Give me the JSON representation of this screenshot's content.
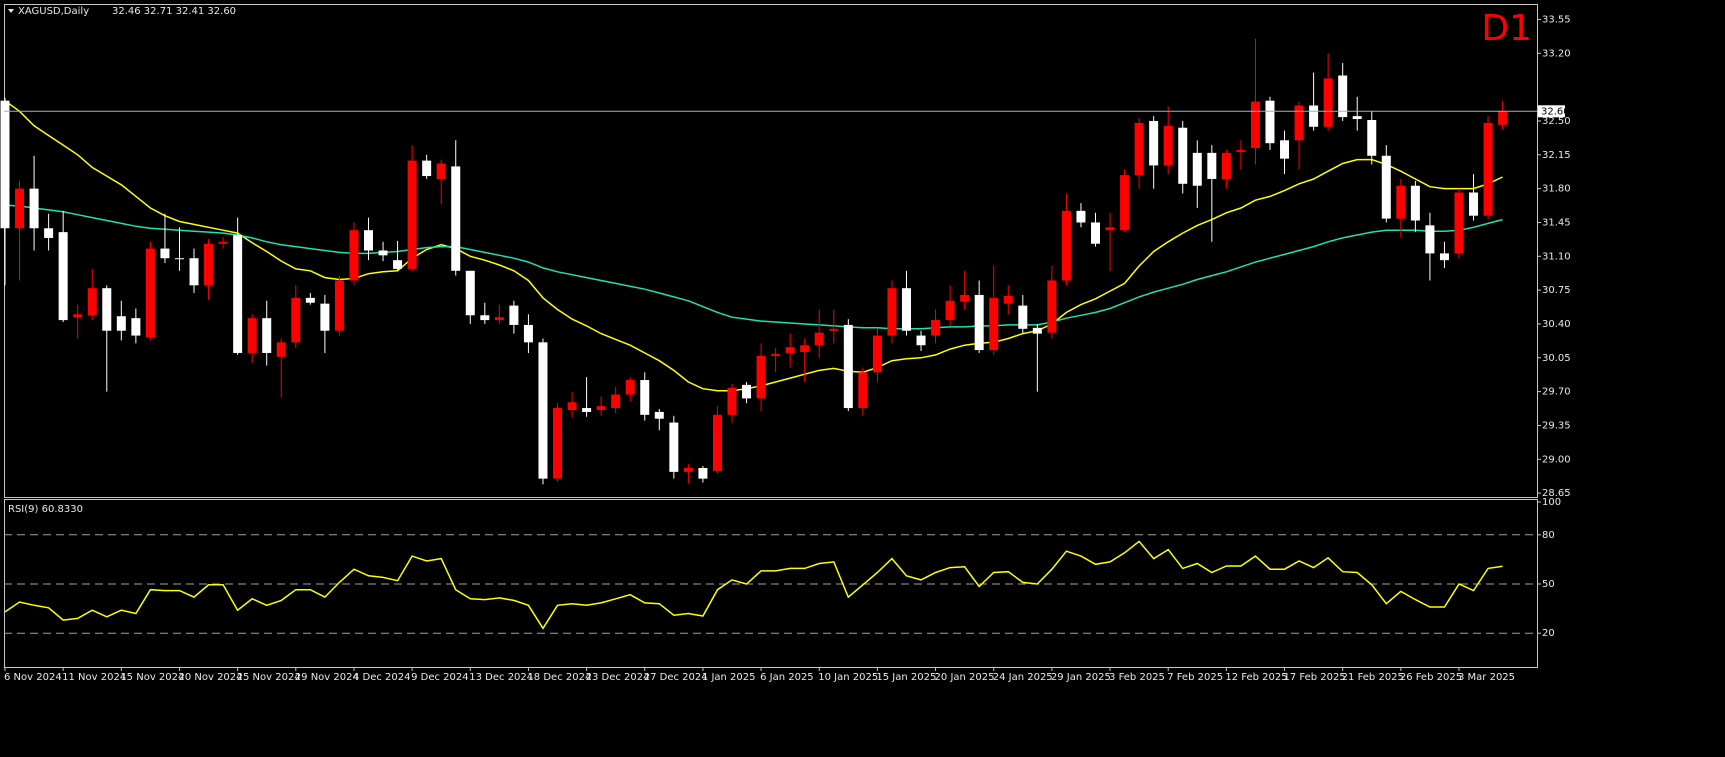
{
  "chart_data": [
    {
      "type": "candlestick",
      "title": "XAGUSD,Daily",
      "header": "32.46 32.71 32.41 32.60",
      "timeframe": "D1",
      "categories": [
        "6 Nov 2024",
        null,
        null,
        null,
        "11 Nov 2024",
        null,
        null,
        null,
        "15 Nov 2024",
        null,
        null,
        null,
        "20 Nov 2024",
        null,
        null,
        null,
        "25 Nov 2024",
        null,
        null,
        null,
        "29 Nov 2024",
        null,
        null,
        null,
        "4 Dec 2024",
        null,
        null,
        null,
        "9 Dec 2024",
        null,
        null,
        null,
        "13 Dec 2024",
        null,
        null,
        null,
        "18 Dec 2024",
        null,
        null,
        null,
        "23 Dec 2024",
        null,
        null,
        null,
        "27 Dec 2024",
        null,
        null,
        null,
        "1 Jan 2025",
        null,
        null,
        null,
        "6 Jan 2025",
        null,
        null,
        null,
        "10 Jan 2025",
        null,
        null,
        null,
        "15 Jan 2025",
        null,
        null,
        null,
        "20 Jan 2025",
        null,
        null,
        null,
        "24 Jan 2025",
        null,
        null,
        null,
        "29 Jan 2025",
        null,
        null,
        null,
        "3 Feb 2025",
        null,
        null,
        null,
        "7 Feb 2025",
        null,
        null,
        null,
        "12 Feb 2025",
        null,
        null,
        null,
        "17 Feb 2025",
        null,
        null,
        null,
        "21 Feb 2025",
        null,
        null,
        null,
        "26 Feb 2025",
        null,
        null,
        null,
        "3 Mar 2025",
        null,
        null,
        null
      ],
      "open": [
        32.71,
        31.39,
        31.8,
        31.39,
        31.35,
        30.47,
        30.49,
        30.77,
        30.48,
        30.46,
        30.26,
        31.18,
        31.08,
        31.08,
        30.8,
        31.23,
        31.32,
        30.1,
        30.46,
        30.06,
        30.21,
        30.67,
        30.61,
        30.33,
        30.85,
        31.37,
        31.16,
        31.06,
        30.97,
        32.09,
        31.9,
        32.03,
        30.95,
        30.49,
        30.44,
        30.59,
        30.39,
        30.21,
        28.8,
        29.51,
        29.53,
        29.51,
        29.53,
        29.67,
        29.82,
        29.49,
        29.38,
        28.87,
        28.91,
        28.88,
        29.46,
        29.77,
        29.63,
        30.07,
        30.1,
        30.11,
        30.18,
        30.33,
        30.39,
        29.53,
        29.9,
        30.28,
        30.77,
        30.28,
        30.28,
        30.44,
        30.63,
        30.7,
        30.13,
        30.61,
        30.59,
        30.36,
        30.31,
        30.85,
        31.57,
        31.45,
        31.37,
        31.37,
        31.94,
        32.5,
        32.04,
        32.43,
        32.17,
        32.17,
        31.9,
        32.18,
        32.22,
        32.71,
        32.3,
        32.3,
        32.66,
        32.44,
        32.97,
        32.55,
        32.51,
        32.14,
        31.49,
        31.83,
        31.42,
        31.13,
        31.13,
        31.76,
        31.52,
        32.46
      ],
      "high": [
        32.74,
        31.88,
        32.14,
        31.54,
        31.57,
        30.6,
        30.97,
        30.8,
        30.64,
        30.56,
        31.25,
        31.54,
        31.4,
        31.18,
        31.28,
        31.3,
        31.5,
        30.5,
        30.64,
        30.25,
        30.8,
        30.72,
        30.7,
        30.9,
        31.45,
        31.5,
        31.25,
        31.26,
        32.25,
        32.15,
        32.1,
        32.3,
        30.95,
        30.62,
        30.6,
        30.64,
        30.5,
        30.25,
        29.58,
        29.7,
        29.85,
        29.65,
        29.75,
        29.85,
        29.9,
        29.52,
        29.45,
        28.95,
        28.93,
        29.55,
        29.78,
        29.8,
        30.2,
        30.15,
        30.3,
        30.25,
        30.55,
        30.55,
        30.45,
        29.95,
        30.35,
        30.85,
        30.95,
        30.33,
        30.55,
        30.8,
        30.95,
        30.85,
        31.0,
        30.8,
        30.7,
        30.4,
        31.0,
        31.75,
        31.65,
        31.55,
        31.55,
        32.0,
        32.53,
        32.55,
        32.65,
        32.5,
        32.3,
        32.25,
        32.2,
        32.3,
        33.35,
        32.75,
        32.4,
        32.7,
        33.0,
        33.2,
        33.1,
        32.75,
        32.6,
        32.25,
        31.9,
        31.88,
        31.55,
        31.25,
        31.8,
        31.95,
        32.55,
        32.71
      ],
      "low": [
        30.8,
        30.85,
        31.16,
        31.16,
        30.42,
        30.25,
        30.44,
        29.7,
        30.23,
        30.2,
        30.23,
        31.03,
        30.95,
        30.72,
        30.65,
        31.18,
        30.08,
        30.0,
        29.97,
        29.64,
        30.15,
        30.6,
        30.1,
        30.28,
        30.8,
        31.06,
        31.05,
        30.95,
        30.95,
        31.9,
        31.64,
        30.9,
        30.4,
        30.4,
        30.4,
        30.3,
        30.1,
        28.74,
        28.77,
        29.43,
        29.44,
        29.45,
        29.48,
        29.6,
        29.4,
        29.3,
        28.8,
        28.75,
        28.76,
        28.85,
        29.38,
        29.58,
        29.5,
        29.9,
        29.95,
        29.8,
        30.05,
        30.2,
        29.5,
        29.45,
        29.8,
        30.2,
        30.28,
        30.12,
        30.2,
        30.38,
        30.55,
        30.1,
        30.08,
        30.5,
        30.3,
        29.7,
        30.25,
        30.8,
        31.4,
        31.2,
        30.95,
        31.35,
        31.8,
        31.8,
        31.95,
        31.75,
        31.6,
        31.25,
        31.8,
        32.0,
        32.05,
        32.2,
        31.95,
        32.0,
        32.4,
        32.4,
        32.5,
        32.4,
        32.05,
        31.45,
        31.3,
        31.35,
        30.85,
        30.98,
        31.08,
        31.47,
        31.48,
        32.41
      ],
      "close": [
        31.39,
        31.8,
        31.39,
        31.29,
        30.44,
        30.5,
        30.77,
        30.33,
        30.33,
        30.28,
        31.18,
        31.08,
        31.07,
        30.8,
        31.23,
        31.25,
        30.1,
        30.46,
        30.1,
        30.21,
        30.67,
        30.62,
        30.33,
        30.85,
        31.37,
        31.16,
        31.11,
        30.97,
        32.09,
        31.93,
        32.06,
        30.95,
        30.49,
        30.44,
        30.47,
        30.39,
        30.21,
        28.8,
        29.53,
        29.59,
        29.49,
        29.55,
        29.67,
        29.82,
        29.46,
        29.42,
        28.87,
        28.91,
        28.8,
        29.46,
        29.74,
        29.63,
        30.07,
        30.09,
        30.16,
        30.18,
        30.31,
        30.35,
        29.53,
        29.9,
        30.28,
        30.77,
        30.33,
        30.18,
        30.44,
        30.64,
        30.7,
        30.13,
        30.67,
        30.69,
        30.35,
        30.3,
        30.85,
        31.57,
        31.45,
        31.23,
        31.4,
        31.94,
        32.48,
        32.04,
        32.45,
        31.85,
        31.83,
        31.9,
        32.17,
        32.2,
        32.7,
        32.27,
        32.11,
        32.66,
        32.44,
        32.94,
        32.54,
        32.52,
        32.14,
        31.49,
        31.83,
        31.47,
        31.13,
        31.06,
        31.76,
        31.52,
        32.48,
        32.6
      ],
      "up_color": "#ff0000",
      "down_color": "#ffffff",
      "series": [
        {
          "color": "#ffff00",
          "values": [
            32.71,
            32.6,
            32.45,
            32.35,
            32.25,
            32.15,
            32.02,
            31.93,
            31.84,
            31.72,
            31.6,
            31.52,
            31.46,
            31.43,
            31.4,
            31.37,
            31.34,
            31.24,
            31.15,
            31.05,
            30.97,
            30.95,
            30.88,
            30.86,
            30.87,
            30.92,
            30.94,
            30.95,
            31.08,
            31.17,
            31.22,
            31.18,
            31.1,
            31.06,
            31.01,
            30.95,
            30.85,
            30.67,
            30.55,
            30.45,
            30.38,
            30.3,
            30.24,
            30.18,
            30.1,
            30.02,
            29.92,
            29.8,
            29.73,
            29.71,
            29.71,
            29.73,
            29.76,
            29.8,
            29.84,
            29.88,
            29.92,
            29.94,
            29.91,
            29.9,
            29.95,
            30.02,
            30.04,
            30.05,
            30.08,
            30.14,
            30.18,
            30.2,
            30.21,
            30.25,
            30.3,
            30.33,
            30.4,
            30.52,
            30.6,
            30.66,
            30.74,
            30.82,
            31.0,
            31.15,
            31.25,
            31.34,
            31.42,
            31.48,
            31.55,
            31.6,
            31.68,
            31.72,
            31.78,
            31.85,
            31.9,
            31.98,
            32.06,
            32.1,
            32.1,
            32.05,
            31.98,
            31.9,
            31.82,
            31.8,
            31.8,
            31.8,
            31.85,
            31.92
          ]
        },
        {
          "color": "#20e0b0",
          "values": [
            31.63,
            31.62,
            31.6,
            31.58,
            31.56,
            31.53,
            31.5,
            31.47,
            31.44,
            31.41,
            31.39,
            31.38,
            31.37,
            31.36,
            31.35,
            31.34,
            31.32,
            31.29,
            31.25,
            31.22,
            31.2,
            31.18,
            31.16,
            31.14,
            31.13,
            31.13,
            31.14,
            31.15,
            31.17,
            31.19,
            31.2,
            31.2,
            31.17,
            31.14,
            31.11,
            31.08,
            31.04,
            30.98,
            30.94,
            30.91,
            30.88,
            30.85,
            30.82,
            30.79,
            30.76,
            30.72,
            30.68,
            30.64,
            30.58,
            30.52,
            30.47,
            30.45,
            30.43,
            30.42,
            30.41,
            30.4,
            30.39,
            30.38,
            30.37,
            30.36,
            30.36,
            30.35,
            30.35,
            30.35,
            30.36,
            30.37,
            30.37,
            30.38,
            30.38,
            30.39,
            30.39,
            30.39,
            30.42,
            30.46,
            30.49,
            30.52,
            30.56,
            30.62,
            30.68,
            30.73,
            30.77,
            30.81,
            30.86,
            30.9,
            30.94,
            30.99,
            31.04,
            31.08,
            31.12,
            31.16,
            31.2,
            31.25,
            31.29,
            31.32,
            31.35,
            31.37,
            31.37,
            31.37,
            31.36,
            31.36,
            31.37,
            31.4,
            31.44,
            31.48
          ]
        }
      ],
      "last_price": {
        "value": 32.6,
        "label": "32.60"
      },
      "last_price_color": "#8fb4d8",
      "ylim": [
        28.61,
        33.71
      ],
      "yticks": [
        33.55,
        {
          "value": 33.2,
          "label": "33.20"
        },
        {
          "value": 32.5,
          "label": "32.50"
        },
        32.15,
        {
          "value": 31.8,
          "label": "31.80"
        },
        31.45,
        {
          "value": 31.1,
          "label": "31.10"
        },
        30.75,
        {
          "value": 30.4,
          "label": "30.40"
        },
        30.05,
        {
          "value": 29.7,
          "label": "29.70"
        },
        29.35,
        {
          "value": 29,
          "label": "29.00"
        },
        28.65
      ]
    },
    {
      "type": "line",
      "title": "RSI(9) 60.8330",
      "series": [
        {
          "color": "#ffff00",
          "values": [
            33,
            39,
            37,
            35.5,
            28,
            29,
            34,
            30,
            34,
            32,
            46.5,
            46,
            46,
            42,
            49.5,
            49.5,
            34,
            41,
            37,
            40,
            46.5,
            46.5,
            42,
            51,
            59,
            55,
            54,
            52,
            67,
            64,
            65.5,
            46.5,
            41,
            40.5,
            41.5,
            40,
            37,
            23,
            37,
            38,
            37,
            38.5,
            41,
            43.5,
            38.5,
            38,
            31,
            32,
            30.5,
            46.5,
            52.5,
            50,
            58,
            58,
            59.5,
            59.5,
            62.5,
            63.5,
            42,
            49.5,
            57,
            65.5,
            55,
            52.5,
            57,
            60,
            60.5,
            48.5,
            57,
            57.5,
            51,
            50,
            59,
            70,
            67,
            62,
            63.5,
            69,
            76,
            65.5,
            71,
            59.5,
            62.5,
            57,
            61,
            61,
            67,
            59,
            59,
            64,
            60,
            66,
            57.5,
            57,
            49.5,
            38,
            45.5,
            40.5,
            36,
            36,
            50,
            46,
            59.5,
            60.833
          ]
        }
      ],
      "levels": [
        80,
        50,
        20
      ],
      "ylim": [
        0,
        100
      ],
      "yticks": [
        100,
        80,
        50,
        20
      ]
    }
  ]
}
